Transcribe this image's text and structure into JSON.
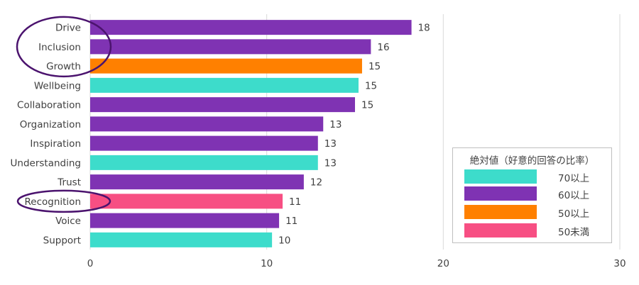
{
  "chart_data": {
    "type": "bar",
    "orientation": "horizontal",
    "categories": [
      "Drive",
      "Inclusion",
      "Growth",
      "Wellbeing",
      "Collaboration",
      "Organization",
      "Inspiration",
      "Understanding",
      "Trust",
      "Recognition",
      "Voice",
      "Support"
    ],
    "values": [
      18.2,
      15.9,
      15.4,
      15.2,
      15.0,
      13.2,
      12.9,
      12.9,
      12.1,
      10.9,
      10.7,
      10.3
    ],
    "value_labels": [
      "18",
      "16",
      "15",
      "15",
      "15",
      "13",
      "13",
      "13",
      "12",
      "11",
      "11",
      "10"
    ],
    "bar_groups": [
      "60以上",
      "60以上",
      "50以上",
      "70以上",
      "60以上",
      "60以上",
      "60以上",
      "70以上",
      "60以上",
      "50未満",
      "60以上",
      "70以上"
    ],
    "xlim": [
      0,
      30
    ],
    "xticks": [
      0,
      10,
      20,
      30
    ],
    "xtick_labels": [
      "0",
      "10",
      "20",
      "30"
    ],
    "grid": "vertical",
    "legend": {
      "title": "絶対値（好意的回答の比率）",
      "placement": "bottom-right",
      "items": [
        {
          "label": "70以上",
          "color": "#3ddccb"
        },
        {
          "label": "60以上",
          "color": "#7f33b3"
        },
        {
          "label": "50以上",
          "color": "#ff8000"
        },
        {
          "label": "50未満",
          "color": "#f74f83"
        }
      ]
    },
    "highlighted": [
      "Drive",
      "Inclusion",
      "Growth",
      "Recognition"
    ],
    "highlight_color": "#4b136e"
  }
}
